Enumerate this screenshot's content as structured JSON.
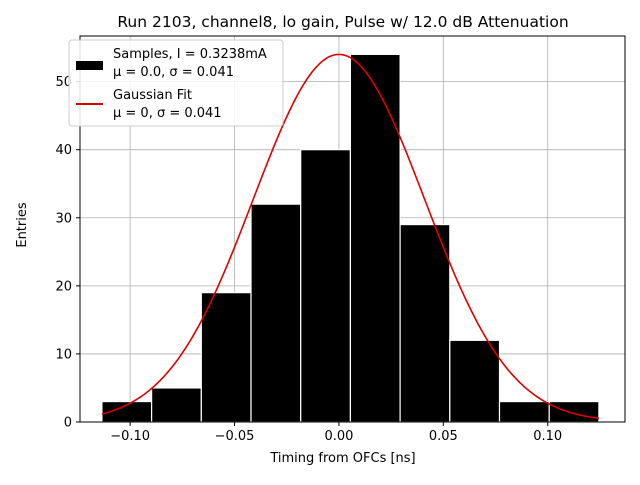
{
  "chart_data": {
    "type": "bar",
    "title": "Run 2103, channel8, lo gain, Pulse w/ 12.0 dB Attenuation",
    "xlabel": "Timing from OFCs [ns]",
    "ylabel": "Entries",
    "xlim": [
      -0.124,
      0.137
    ],
    "ylim": [
      0,
      56.7
    ],
    "xticks": [
      -0.1,
      -0.05,
      0.0,
      0.05,
      0.1
    ],
    "xtick_labels": [
      "−0.10",
      "−0.05",
      "0.00",
      "0.05",
      "0.10"
    ],
    "yticks": [
      0,
      10,
      20,
      30,
      40,
      50
    ],
    "ytick_labels": [
      "0",
      "10",
      "20",
      "30",
      "40",
      "50"
    ],
    "grid": true,
    "bin_edges": [
      -0.1135,
      -0.0897,
      -0.0659,
      -0.0421,
      -0.0183,
      0.0055,
      0.0293,
      0.0531,
      0.0769,
      0.1007,
      0.1245
    ],
    "counts": [
      3,
      5,
      19,
      32,
      40,
      54,
      29,
      12,
      3,
      3
    ],
    "bar_color": "#000000",
    "bar_edge_color": "#ffffff",
    "fit": {
      "type": "gaussian",
      "mu": 0.0,
      "sigma": 0.041,
      "peak": 54,
      "color": "#dd0000"
    },
    "legend": {
      "position": "upper left",
      "entries": [
        {
          "line1": "Samples, I = 0.3238mA",
          "line2": "μ = 0.0, σ = 0.041",
          "kind": "patch",
          "color": "#000000"
        },
        {
          "line1": "Gaussian Fit",
          "line2": "μ = 0, σ = 0.041",
          "kind": "line",
          "color": "#dd0000"
        }
      ]
    }
  }
}
